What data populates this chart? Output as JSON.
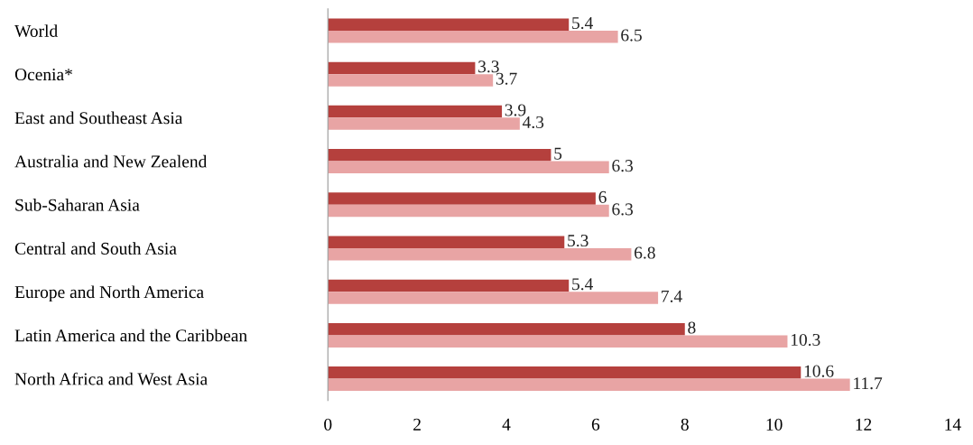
{
  "chart_data": {
    "type": "bar",
    "orientation": "horizontal",
    "categories": [
      "World",
      "Ocenia*",
      "East and Southeast Asia",
      "Australia and New Zealend",
      "Sub-Saharan Asia",
      "Central and South Asia",
      "Europe and North America",
      "Latin America and the Caribbean",
      "North Africa and West Asia"
    ],
    "series": [
      {
        "color": "#b5403d",
        "values": [
          5.4,
          3.3,
          3.9,
          5,
          6,
          5.3,
          5.4,
          8,
          10.6
        ]
      },
      {
        "color": "#e8a4a4",
        "values": [
          6.5,
          3.7,
          4.3,
          6.3,
          6.3,
          6.8,
          7.4,
          10.3,
          11.7
        ]
      }
    ],
    "xlim": [
      0,
      14
    ],
    "xticks": [
      0,
      2,
      4,
      6,
      8,
      10,
      12,
      14
    ],
    "data_labels": true,
    "grid": false,
    "legend": false
  }
}
